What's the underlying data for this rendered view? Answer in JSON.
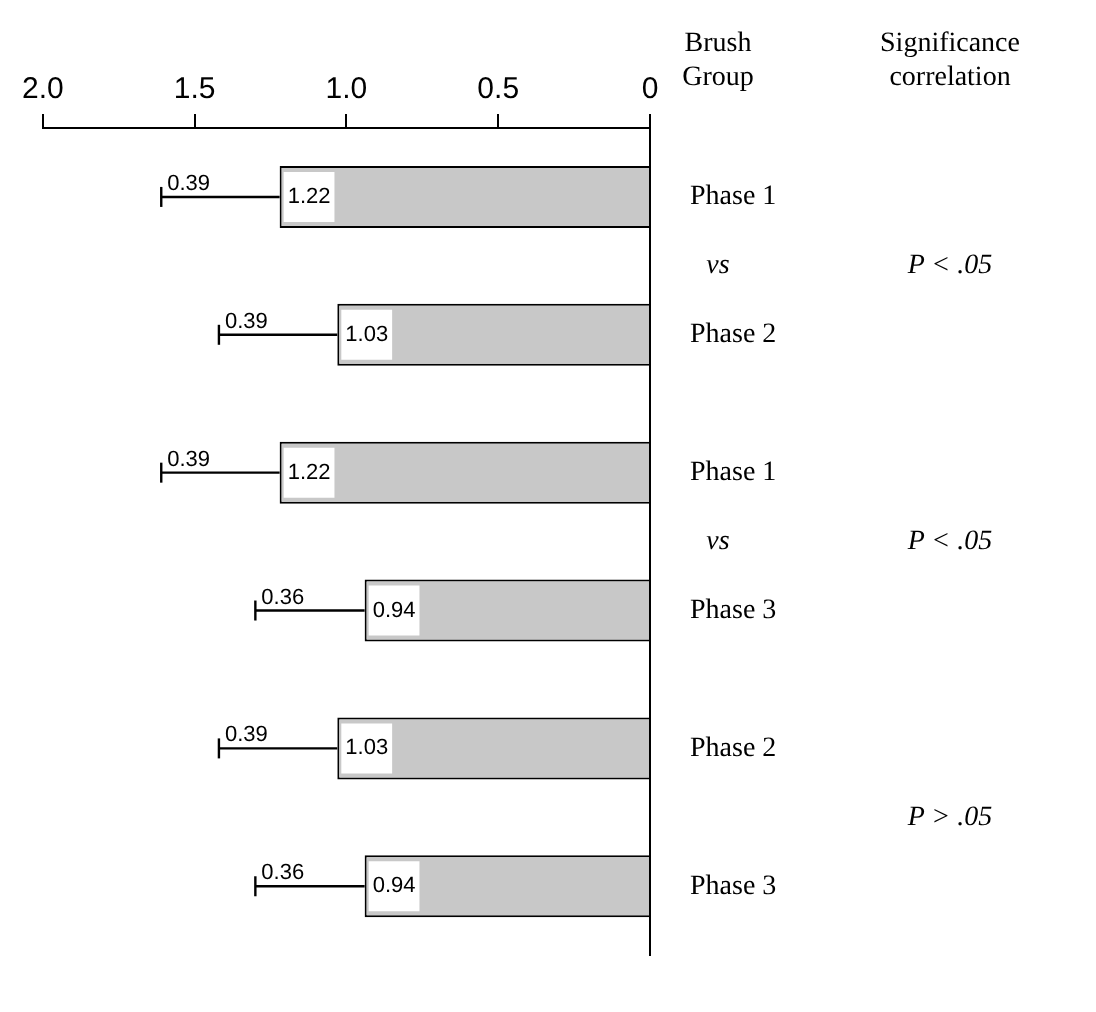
{
  "chart_data": {
    "type": "bar",
    "orientation": "horizontal",
    "ylabel": "Brush Group",
    "categories": [
      "Phase 1",
      "Phase 2",
      "Phase 1",
      "Phase 3",
      "Phase 2",
      "Phase 3"
    ],
    "values": [
      1.22,
      1.03,
      1.22,
      0.94,
      1.03,
      0.94
    ],
    "errors": [
      [
        1.22,
        1.61
      ],
      [
        1.03,
        1.42
      ],
      [
        1.22,
        1.61
      ],
      [
        0.94,
        1.3
      ],
      [
        1.03,
        1.42
      ],
      [
        0.94,
        1.3
      ]
    ],
    "color": "#c8c8c8",
    "xlim": [
      2,
      0
    ],
    "xticks": [
      {
        "value": 2,
        "label": "2.0"
      },
      1.5,
      {
        "value": 1,
        "label": "1.0"
      },
      0.5,
      0
    ],
    "data_labels": true,
    "grid": false,
    "legend": false,
    "annotations": [
      "Significance correlation",
      "vs",
      "P < .05",
      "vs",
      "P < .05",
      "P > .05",
      "0.39",
      "0.39",
      "0.39",
      "0.36",
      "0.39",
      "0.36"
    ]
  }
}
